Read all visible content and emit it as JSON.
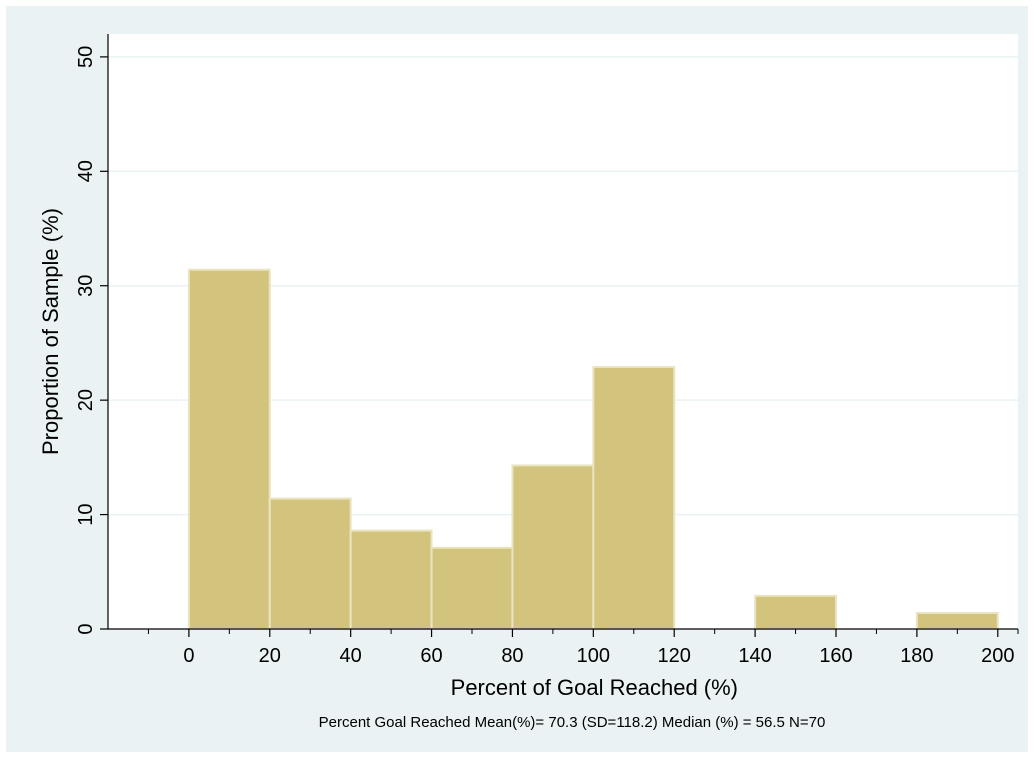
{
  "chart_data": {
    "type": "bar",
    "title": "",
    "xlabel": "Percent of Goal Reached (%)",
    "ylabel": "Proportion of Sample (%)",
    "note": "Percent Goal Reached Mean(%)=  70.3 (SD=118.2) Median (%) = 56.5 N=70",
    "xlim": [
      -20,
      205
    ],
    "ylim": [
      0,
      52
    ],
    "x_ticks": [
      "0",
      "20",
      "40",
      "60",
      "80",
      "100",
      "120",
      "140",
      "160",
      "180",
      "200"
    ],
    "x_tick_values": [
      0,
      20,
      40,
      60,
      80,
      100,
      120,
      140,
      160,
      180,
      200
    ],
    "y_ticks": [
      "0",
      "10",
      "20",
      "30",
      "40",
      "50"
    ],
    "y_tick_values": [
      0,
      10,
      20,
      30,
      40,
      50
    ],
    "grid": true,
    "legend": "none",
    "bins": [
      {
        "start": 0,
        "end": 20,
        "value": 31.4
      },
      {
        "start": 20,
        "end": 40,
        "value": 11.4
      },
      {
        "start": 40,
        "end": 60,
        "value": 8.6
      },
      {
        "start": 60,
        "end": 80,
        "value": 7.1
      },
      {
        "start": 80,
        "end": 100,
        "value": 14.3
      },
      {
        "start": 100,
        "end": 120,
        "value": 22.9
      },
      {
        "start": 120,
        "end": 140,
        "value": 0
      },
      {
        "start": 140,
        "end": 160,
        "value": 2.9
      },
      {
        "start": 160,
        "end": 180,
        "value": 0
      },
      {
        "start": 180,
        "end": 200,
        "value": 1.4
      }
    ],
    "colors": {
      "outer_background": "#eaf2f3",
      "plot_background": "#ffffff",
      "bar_fill": "#d2c47d",
      "bar_edge": "#eae4c1",
      "grid": "#eaf2f3",
      "axis": "#000000"
    }
  }
}
